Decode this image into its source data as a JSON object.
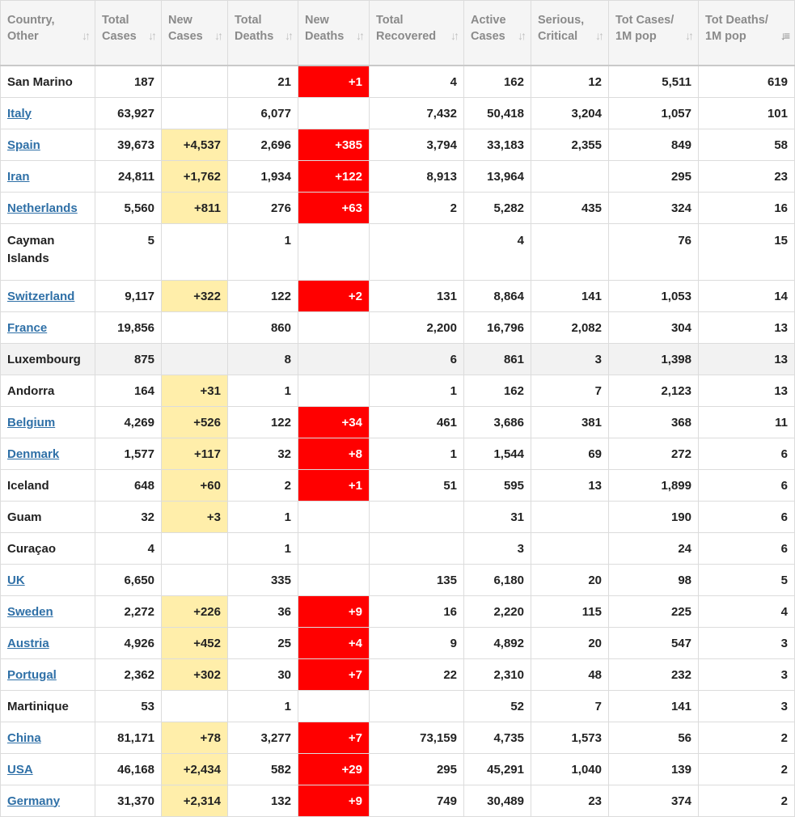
{
  "table": {
    "headers": [
      "Country,\nOther",
      "Total\nCases",
      "New\nCases",
      "Total\nDeaths",
      "New\nDeaths",
      "Total\nRecovered",
      "Active\nCases",
      "Serious,\nCritical",
      "Tot Cases/\n1M pop",
      "Tot Deaths/\n1M pop"
    ],
    "sort_icon": "sort-arrows-icon",
    "active_sort_column": 9,
    "colors": {
      "link": "#2f70a7",
      "new_cases_bg": "#ffeeaa",
      "new_deaths_bg": "#ff0000",
      "header_text": "#8a8a8a",
      "highlight_row_bg": "#f2f2f2"
    },
    "rows": [
      {
        "country": "San Marino",
        "link": false,
        "total_cases": "187",
        "new_cases": "",
        "total_deaths": "21",
        "new_deaths": "+1",
        "total_recovered": "4",
        "active_cases": "162",
        "serious": "12",
        "cases_per_1m": "5,511",
        "deaths_per_1m": "619"
      },
      {
        "country": "Italy",
        "link": true,
        "total_cases": "63,927",
        "new_cases": "",
        "total_deaths": "6,077",
        "new_deaths": "",
        "total_recovered": "7,432",
        "active_cases": "50,418",
        "serious": "3,204",
        "cases_per_1m": "1,057",
        "deaths_per_1m": "101"
      },
      {
        "country": "Spain",
        "link": true,
        "total_cases": "39,673",
        "new_cases": "+4,537",
        "total_deaths": "2,696",
        "new_deaths": "+385",
        "total_recovered": "3,794",
        "active_cases": "33,183",
        "serious": "2,355",
        "cases_per_1m": "849",
        "deaths_per_1m": "58"
      },
      {
        "country": "Iran",
        "link": true,
        "total_cases": "24,811",
        "new_cases": "+1,762",
        "total_deaths": "1,934",
        "new_deaths": "+122",
        "total_recovered": "8,913",
        "active_cases": "13,964",
        "serious": "",
        "cases_per_1m": "295",
        "deaths_per_1m": "23"
      },
      {
        "country": "Netherlands",
        "link": true,
        "total_cases": "5,560",
        "new_cases": "+811",
        "total_deaths": "276",
        "new_deaths": "+63",
        "total_recovered": "2",
        "active_cases": "5,282",
        "serious": "435",
        "cases_per_1m": "324",
        "deaths_per_1m": "16"
      },
      {
        "country": "Cayman\nIslands",
        "link": false,
        "tall": true,
        "total_cases": "5",
        "new_cases": "",
        "total_deaths": "1",
        "new_deaths": "",
        "total_recovered": "",
        "active_cases": "4",
        "serious": "",
        "cases_per_1m": "76",
        "deaths_per_1m": "15"
      },
      {
        "country": "Switzerland",
        "link": true,
        "total_cases": "9,117",
        "new_cases": "+322",
        "total_deaths": "122",
        "new_deaths": "+2",
        "total_recovered": "131",
        "active_cases": "8,864",
        "serious": "141",
        "cases_per_1m": "1,053",
        "deaths_per_1m": "14"
      },
      {
        "country": "France",
        "link": true,
        "total_cases": "19,856",
        "new_cases": "",
        "total_deaths": "860",
        "new_deaths": "",
        "total_recovered": "2,200",
        "active_cases": "16,796",
        "serious": "2,082",
        "cases_per_1m": "304",
        "deaths_per_1m": "13"
      },
      {
        "country": "Luxembourg",
        "link": false,
        "highlight": true,
        "total_cases": "875",
        "new_cases": "",
        "total_deaths": "8",
        "new_deaths": "",
        "total_recovered": "6",
        "active_cases": "861",
        "serious": "3",
        "cases_per_1m": "1,398",
        "deaths_per_1m": "13"
      },
      {
        "country": "Andorra",
        "link": false,
        "total_cases": "164",
        "new_cases": "+31",
        "total_deaths": "1",
        "new_deaths": "",
        "total_recovered": "1",
        "active_cases": "162",
        "serious": "7",
        "cases_per_1m": "2,123",
        "deaths_per_1m": "13"
      },
      {
        "country": "Belgium",
        "link": true,
        "total_cases": "4,269",
        "new_cases": "+526",
        "total_deaths": "122",
        "new_deaths": "+34",
        "total_recovered": "461",
        "active_cases": "3,686",
        "serious": "381",
        "cases_per_1m": "368",
        "deaths_per_1m": "11"
      },
      {
        "country": "Denmark",
        "link": true,
        "total_cases": "1,577",
        "new_cases": "+117",
        "total_deaths": "32",
        "new_deaths": "+8",
        "total_recovered": "1",
        "active_cases": "1,544",
        "serious": "69",
        "cases_per_1m": "272",
        "deaths_per_1m": "6"
      },
      {
        "country": "Iceland",
        "link": false,
        "total_cases": "648",
        "new_cases": "+60",
        "total_deaths": "2",
        "new_deaths": "+1",
        "total_recovered": "51",
        "active_cases": "595",
        "serious": "13",
        "cases_per_1m": "1,899",
        "deaths_per_1m": "6"
      },
      {
        "country": "Guam",
        "link": false,
        "total_cases": "32",
        "new_cases": "+3",
        "total_deaths": "1",
        "new_deaths": "",
        "total_recovered": "",
        "active_cases": "31",
        "serious": "",
        "cases_per_1m": "190",
        "deaths_per_1m": "6"
      },
      {
        "country": "Curaçao",
        "link": false,
        "total_cases": "4",
        "new_cases": "",
        "total_deaths": "1",
        "new_deaths": "",
        "total_recovered": "",
        "active_cases": "3",
        "serious": "",
        "cases_per_1m": "24",
        "deaths_per_1m": "6"
      },
      {
        "country": "UK",
        "link": true,
        "total_cases": "6,650",
        "new_cases": "",
        "total_deaths": "335",
        "new_deaths": "",
        "total_recovered": "135",
        "active_cases": "6,180",
        "serious": "20",
        "cases_per_1m": "98",
        "deaths_per_1m": "5"
      },
      {
        "country": "Sweden",
        "link": true,
        "total_cases": "2,272",
        "new_cases": "+226",
        "total_deaths": "36",
        "new_deaths": "+9",
        "total_recovered": "16",
        "active_cases": "2,220",
        "serious": "115",
        "cases_per_1m": "225",
        "deaths_per_1m": "4"
      },
      {
        "country": "Austria",
        "link": true,
        "total_cases": "4,926",
        "new_cases": "+452",
        "total_deaths": "25",
        "new_deaths": "+4",
        "total_recovered": "9",
        "active_cases": "4,892",
        "serious": "20",
        "cases_per_1m": "547",
        "deaths_per_1m": "3"
      },
      {
        "country": "Portugal",
        "link": true,
        "total_cases": "2,362",
        "new_cases": "+302",
        "total_deaths": "30",
        "new_deaths": "+7",
        "total_recovered": "22",
        "active_cases": "2,310",
        "serious": "48",
        "cases_per_1m": "232",
        "deaths_per_1m": "3"
      },
      {
        "country": "Martinique",
        "link": false,
        "total_cases": "53",
        "new_cases": "",
        "total_deaths": "1",
        "new_deaths": "",
        "total_recovered": "",
        "active_cases": "52",
        "serious": "7",
        "cases_per_1m": "141",
        "deaths_per_1m": "3"
      },
      {
        "country": "China",
        "link": true,
        "total_cases": "81,171",
        "new_cases": "+78",
        "total_deaths": "3,277",
        "new_deaths": "+7",
        "total_recovered": "73,159",
        "active_cases": "4,735",
        "serious": "1,573",
        "cases_per_1m": "56",
        "deaths_per_1m": "2"
      },
      {
        "country": "USA",
        "link": true,
        "total_cases": "46,168",
        "new_cases": "+2,434",
        "total_deaths": "582",
        "new_deaths": "+29",
        "total_recovered": "295",
        "active_cases": "45,291",
        "serious": "1,040",
        "cases_per_1m": "139",
        "deaths_per_1m": "2"
      },
      {
        "country": "Germany",
        "link": true,
        "total_cases": "31,370",
        "new_cases": "+2,314",
        "total_deaths": "132",
        "new_deaths": "+9",
        "total_recovered": "749",
        "active_cases": "30,489",
        "serious": "23",
        "cases_per_1m": "374",
        "deaths_per_1m": "2"
      }
    ]
  }
}
